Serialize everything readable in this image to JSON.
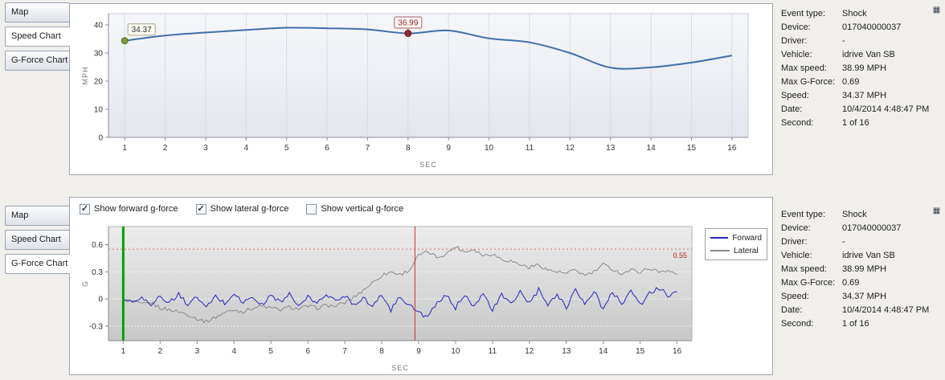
{
  "tabs": [
    "Map",
    "Speed Chart",
    "G-Force Chart"
  ],
  "icons": {
    "panel_corner": "▦"
  },
  "details": {
    "rows": [
      {
        "label": "Event type:",
        "value": "Shock"
      },
      {
        "label": "Device:",
        "value": "017040000037"
      },
      {
        "label": "Driver:",
        "value": "-"
      },
      {
        "label": "Vehicle:",
        "value": "idrive Van SB"
      },
      {
        "label": "Max speed:",
        "value": "38.99 MPH"
      },
      {
        "label": "Max G-Force:",
        "value": "0.69"
      },
      {
        "label": "Speed:",
        "value": "34.37 MPH"
      },
      {
        "label": "Date:",
        "value": "10/4/2014 4:48:47 PM"
      },
      {
        "label": "Second:",
        "value": "1 of 16"
      }
    ]
  },
  "checkboxes": [
    {
      "label": "Show forward g-force",
      "checked": true
    },
    {
      "label": "Show lateral g-force",
      "checked": true
    },
    {
      "label": "Show vertical g-force",
      "checked": false
    }
  ],
  "chart_data": [
    {
      "id": "speed",
      "type": "line",
      "xlabel": "SEC",
      "ylabel": "MPH",
      "x": [
        1,
        2,
        3,
        4,
        5,
        6,
        7,
        8,
        9,
        10,
        11,
        12,
        13,
        14,
        15,
        16
      ],
      "values": [
        34.37,
        36.2,
        37.3,
        38.2,
        38.99,
        38.8,
        38.4,
        36.99,
        38.0,
        35.2,
        33.8,
        30.0,
        24.8,
        24.9,
        26.6,
        29.1
      ],
      "ylim": [
        0,
        44
      ],
      "yticks": [
        0,
        10,
        20,
        30,
        40
      ],
      "xticks": [
        1,
        2,
        3,
        4,
        5,
        6,
        7,
        8,
        9,
        10,
        11,
        12,
        13,
        14,
        15,
        16
      ],
      "line_color": "#3f6fa8",
      "plot_bg_top": "#f5f7fa",
      "plot_bg_bottom": "#e3e7ed",
      "grid_color": "#d9dde3",
      "markers": [
        {
          "x": 1,
          "y": 34.37,
          "label": "34.37",
          "dot_color": "#7f9b3d",
          "dot_edge": "#5e7529",
          "box_border": "#a6a68a",
          "box_fill": "#fdfdf2",
          "text_color": "#333333",
          "connector": false
        },
        {
          "x": 8,
          "y": 36.99,
          "label": "36.99",
          "dot_color": "#8e2a2a",
          "dot_edge": "#6e1d1d",
          "box_border": "#b06060",
          "box_fill": "#fdf6f4",
          "text_color": "#8e2a2a",
          "connector": true
        }
      ]
    },
    {
      "id": "gforce",
      "type": "line",
      "xlabel": "SEC",
      "ylabel": "G",
      "ylim": [
        -0.46,
        0.8
      ],
      "yticks": [
        "-0.3",
        "0",
        "0.3",
        "0.6"
      ],
      "xticks": [
        1,
        2,
        3,
        4,
        5,
        6,
        7,
        8,
        9,
        10,
        11,
        12,
        13,
        14,
        15,
        16
      ],
      "x_start": 1,
      "x_step": 0.25,
      "plot_bg_top": "#ececec",
      "plot_bg_bottom": "#c8c8c8",
      "grid_color": "#f4f4f4",
      "series": [
        {
          "name": "Forward",
          "color": "#2424c4",
          "noise": 0.05,
          "values": [
            0.02,
            -0.05,
            0.04,
            -0.08,
            0.03,
            -0.04,
            0.05,
            -0.06,
            0.02,
            -0.1,
            0.03,
            -0.05,
            0.06,
            -0.04,
            0.02,
            -0.07,
            0.04,
            -0.03,
            0.05,
            -0.08,
            0.02,
            -0.05,
            0.06,
            -0.03,
            0.04,
            -0.06,
            0.02,
            -0.09,
            0.05,
            -0.12,
            0.03,
            -0.07,
            -0.15,
            -0.2,
            -0.05,
            0.04,
            -0.1,
            0.06,
            -0.08,
            0.05,
            -0.12,
            0.04,
            -0.06,
            0.08,
            -0.05,
            0.1,
            -0.08,
            0.06,
            -0.1,
            0.12,
            -0.06,
            0.09,
            -0.12,
            0.08,
            -0.05,
            0.1,
            -0.07,
            0.06,
            0.12,
            0.04,
            0.08
          ]
        },
        {
          "name": "Lateral",
          "color": "#8a8a8a",
          "noise": 0.04,
          "values": [
            0.0,
            -0.03,
            -0.06,
            -0.04,
            -0.1,
            -0.12,
            -0.14,
            -0.17,
            -0.22,
            -0.25,
            -0.2,
            -0.15,
            -0.12,
            -0.14,
            -0.1,
            -0.08,
            -0.1,
            -0.12,
            -0.09,
            -0.11,
            -0.08,
            -0.1,
            -0.07,
            -0.08,
            -0.04,
            0.02,
            0.1,
            0.18,
            0.26,
            0.3,
            0.27,
            0.32,
            0.48,
            0.52,
            0.46,
            0.5,
            0.58,
            0.52,
            0.55,
            0.48,
            0.5,
            0.44,
            0.42,
            0.38,
            0.35,
            0.38,
            0.32,
            0.3,
            0.28,
            0.32,
            0.26,
            0.3,
            0.38,
            0.33,
            0.28,
            0.32,
            0.3,
            0.34,
            0.3,
            0.32,
            0.27
          ]
        }
      ],
      "vlines": [
        {
          "x": 1,
          "color": "#00a000",
          "width": 3
        },
        {
          "x": 8.9,
          "color": "#d03030",
          "width": 1
        }
      ],
      "threshold": {
        "y": 0.55,
        "label": "0.55",
        "color": "#e07070",
        "label_color": "#aa2222"
      }
    }
  ]
}
